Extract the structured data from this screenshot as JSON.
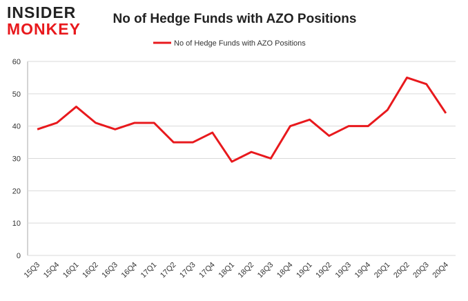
{
  "logo": {
    "line1": "INSIDER",
    "line2": "MONKEY"
  },
  "chart_data": {
    "type": "line",
    "title": "No of Hedge Funds with AZO Positions",
    "categories": [
      "15Q3",
      "15Q4",
      "16Q1",
      "16Q2",
      "16Q3",
      "16Q4",
      "17Q1",
      "17Q2",
      "17Q3",
      "17Q4",
      "18Q1",
      "18Q2",
      "18Q3",
      "18Q4",
      "19Q1",
      "19Q2",
      "19Q3",
      "19Q4",
      "20Q1",
      "20Q2",
      "20Q3",
      "20Q4"
    ],
    "series": [
      {
        "name": "No of Hedge Funds with AZO Positions",
        "color": "#e8191d",
        "values": [
          39,
          41,
          46,
          41,
          39,
          41,
          41,
          35,
          35,
          38,
          29,
          32,
          30,
          40,
          42,
          37,
          40,
          40,
          45,
          55,
          53,
          44
        ]
      }
    ],
    "ylim": [
      0,
      60
    ],
    "yticks": [
      0,
      10,
      20,
      30,
      40,
      50,
      60
    ],
    "grid": true,
    "legend": "top"
  }
}
